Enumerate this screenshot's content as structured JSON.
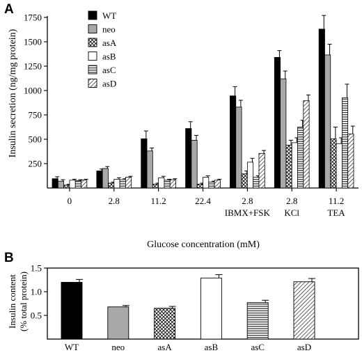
{
  "panels": {
    "a_label": "A",
    "b_label": "B"
  },
  "legend": [
    "WT",
    "neo",
    "asA",
    "asB",
    "asC",
    "asD"
  ],
  "colors": {
    "WT": "#000000",
    "neo": "#a8a8a8",
    "asA": "hatch-cross",
    "asB": "#ffffff",
    "asC": "hatch-horizontal",
    "asD": "hatch-diagonal"
  },
  "chart_data": [
    {
      "type": "bar",
      "panel": "A",
      "ylabel": "Insulin secretion (ng/mg protein)",
      "xlabel": "Glucose concentration (mM)",
      "ylim": [
        0,
        1750
      ],
      "yticks": [
        250,
        500,
        750,
        1000,
        1250,
        1500,
        1750
      ],
      "groups": [
        {
          "label": "0",
          "sublabel": ""
        },
        {
          "label": "2.8",
          "sublabel": ""
        },
        {
          "label": "11.2",
          "sublabel": ""
        },
        {
          "label": "22.4",
          "sublabel": ""
        },
        {
          "label": "2.8",
          "sublabel": "IBMX+FSK"
        },
        {
          "label": "2.8",
          "sublabel": "KCl"
        },
        {
          "label": "11.2",
          "sublabel": "TEA"
        }
      ],
      "series": [
        {
          "name": "WT",
          "values": [
            95,
            175,
            505,
            610,
            945,
            1340,
            1630
          ],
          "errors": [
            20,
            20,
            80,
            70,
            95,
            70,
            140
          ]
        },
        {
          "name": "neo",
          "values": [
            70,
            200,
            380,
            490,
            830,
            1120,
            1365
          ],
          "errors": [
            15,
            20,
            30,
            50,
            70,
            80,
            110
          ]
        },
        {
          "name": "asA",
          "values": [
            30,
            50,
            40,
            40,
            145,
            440,
            505
          ],
          "errors": [
            8,
            10,
            10,
            10,
            30,
            50,
            120
          ]
        },
        {
          "name": "asB",
          "values": [
            80,
            90,
            105,
            110,
            265,
            465,
            455
          ],
          "errors": [
            10,
            15,
            15,
            15,
            40,
            50,
            60
          ]
        },
        {
          "name": "asC",
          "values": [
            75,
            85,
            80,
            60,
            110,
            625,
            925
          ],
          "errors": [
            10,
            10,
            10,
            10,
            15,
            70,
            140
          ]
        },
        {
          "name": "asD",
          "values": [
            80,
            110,
            85,
            80,
            355,
            895,
            555
          ],
          "errors": [
            10,
            10,
            10,
            10,
            30,
            60,
            80
          ]
        }
      ]
    },
    {
      "type": "bar",
      "panel": "B",
      "ylabel_line1": "Insulin content",
      "ylabel_line2": "(% total protein)",
      "ylim": [
        0,
        1.5
      ],
      "yticks": [
        "0.5",
        "1.0",
        "1.5"
      ],
      "categories": [
        "WT",
        "neo",
        "asA",
        "asB",
        "asC",
        "asD"
      ],
      "values": [
        1.2,
        0.68,
        0.65,
        1.29,
        0.77,
        1.21
      ],
      "errors": [
        0.06,
        0.03,
        0.04,
        0.07,
        0.05,
        0.07
      ]
    }
  ]
}
